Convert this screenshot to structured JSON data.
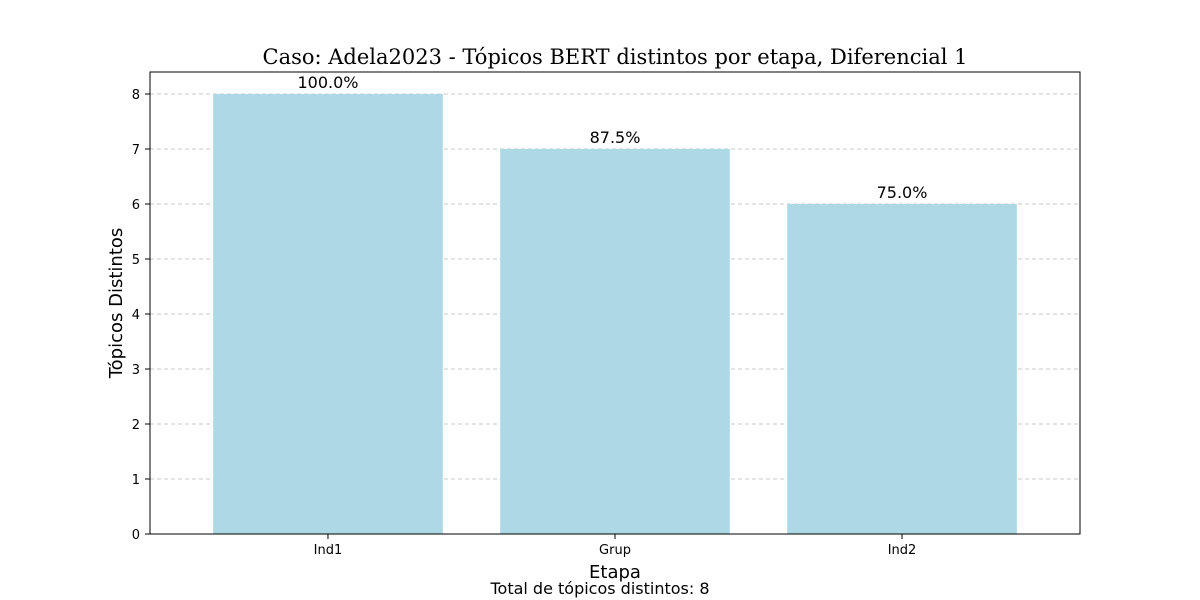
{
  "chart_data": {
    "type": "bar",
    "title": "Caso: Adela2023 - Tópicos BERT distintos por etapa, Diferencial 1",
    "xlabel": "Etapa",
    "ylabel": "Tópicos Distintos",
    "categories": [
      "Ind1",
      "Grup",
      "Ind2"
    ],
    "values": [
      8,
      7,
      6
    ],
    "data_labels": [
      "100.0%",
      "87.5%",
      "75.0%"
    ],
    "y_ticks": [
      "0",
      "1",
      "2",
      "3",
      "4",
      "5",
      "6",
      "7",
      "8"
    ],
    "ylim": [
      0,
      8.4
    ],
    "grid": "y-axis dashed",
    "bar_color": "#add8e6",
    "footer": "Total de tópicos distintos: 8"
  }
}
